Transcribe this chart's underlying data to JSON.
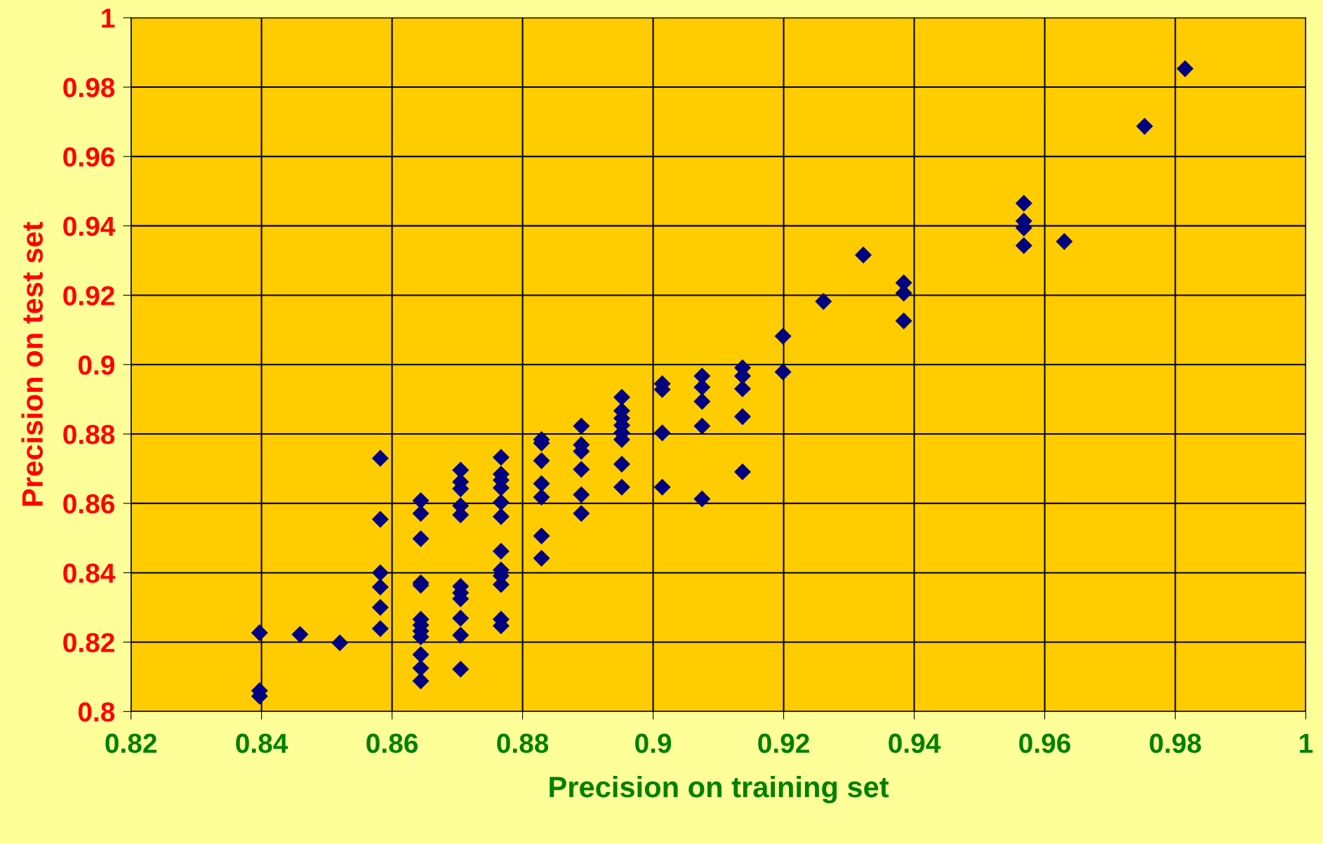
{
  "chart_data": {
    "type": "scatter",
    "xlabel": "Precision on training set",
    "ylabel": "Precision on test set",
    "xlim": [
      0.82,
      1
    ],
    "xticks": [
      0.82,
      0.84,
      0.86,
      0.88,
      0.9,
      0.92,
      0.94,
      0.96,
      0.98,
      1
    ],
    "ylim": [
      0.8,
      1
    ],
    "yticks": [
      0.8,
      0.82,
      0.84,
      0.86,
      0.88,
      0.9,
      0.92,
      0.94,
      0.96,
      0.98,
      1
    ],
    "grid": true,
    "marker": "diamond",
    "series": [
      {
        "color": "#000080",
        "x": [
          0.8397,
          0.8397,
          0.8397,
          0.8459,
          0.852,
          0.8582,
          0.8582,
          0.8582,
          0.8582,
          0.8582,
          0.8582,
          0.8644,
          0.8644,
          0.8644,
          0.8644,
          0.8644,
          0.8644,
          0.8644,
          0.8644,
          0.8644,
          0.8644,
          0.8644,
          0.8644,
          0.8705,
          0.8705,
          0.8705,
          0.8705,
          0.8705,
          0.8705,
          0.8705,
          0.8705,
          0.8705,
          0.8705,
          0.8705,
          0.8767,
          0.8767,
          0.8767,
          0.8767,
          0.8767,
          0.8767,
          0.8767,
          0.8767,
          0.8767,
          0.8767,
          0.8767,
          0.8767,
          0.8829,
          0.8829,
          0.8829,
          0.8829,
          0.8829,
          0.8829,
          0.8829,
          0.889,
          0.889,
          0.889,
          0.889,
          0.889,
          0.889,
          0.8952,
          0.8952,
          0.8952,
          0.8952,
          0.8952,
          0.8952,
          0.8952,
          0.8952,
          0.9014,
          0.9014,
          0.9014,
          0.9014,
          0.9075,
          0.9075,
          0.9075,
          0.9075,
          0.9075,
          0.9137,
          0.9137,
          0.9137,
          0.9137,
          0.9137,
          0.9199,
          0.9199,
          0.9261,
          0.9322,
          0.9384,
          0.9384,
          0.9384,
          0.9568,
          0.9568,
          0.9568,
          0.9568,
          0.963,
          0.9753,
          0.9815
        ],
        "values": [
          0.8227,
          0.806,
          0.8044,
          0.8222,
          0.8198,
          0.873,
          0.8554,
          0.84,
          0.8359,
          0.83,
          0.8239,
          0.8608,
          0.8571,
          0.8498,
          0.8371,
          0.8364,
          0.8266,
          0.8249,
          0.8232,
          0.8215,
          0.8164,
          0.8125,
          0.8088,
          0.8696,
          0.8662,
          0.8642,
          0.8593,
          0.8567,
          0.8361,
          0.8342,
          0.8325,
          0.8269,
          0.822,
          0.8122,
          0.8733,
          0.8684,
          0.8667,
          0.8645,
          0.8603,
          0.8562,
          0.8462,
          0.8408,
          0.8391,
          0.8366,
          0.8266,
          0.8247,
          0.8784,
          0.8774,
          0.8723,
          0.8657,
          0.8618,
          0.8506,
          0.8442,
          0.8823,
          0.8769,
          0.875,
          0.8698,
          0.8625,
          0.8571,
          0.8906,
          0.8867,
          0.8845,
          0.8825,
          0.8803,
          0.8784,
          0.8713,
          0.8647,
          0.8945,
          0.8928,
          0.8803,
          0.8647,
          0.8967,
          0.8935,
          0.8894,
          0.8823,
          0.8613,
          0.8991,
          0.8967,
          0.893,
          0.885,
          0.8691,
          0.9082,
          0.8979,
          0.9182,
          0.9316,
          0.9236,
          0.9206,
          0.9126,
          0.9465,
          0.9414,
          0.9394,
          0.9343,
          0.9355,
          0.9687,
          0.9853
        ]
      }
    ]
  }
}
